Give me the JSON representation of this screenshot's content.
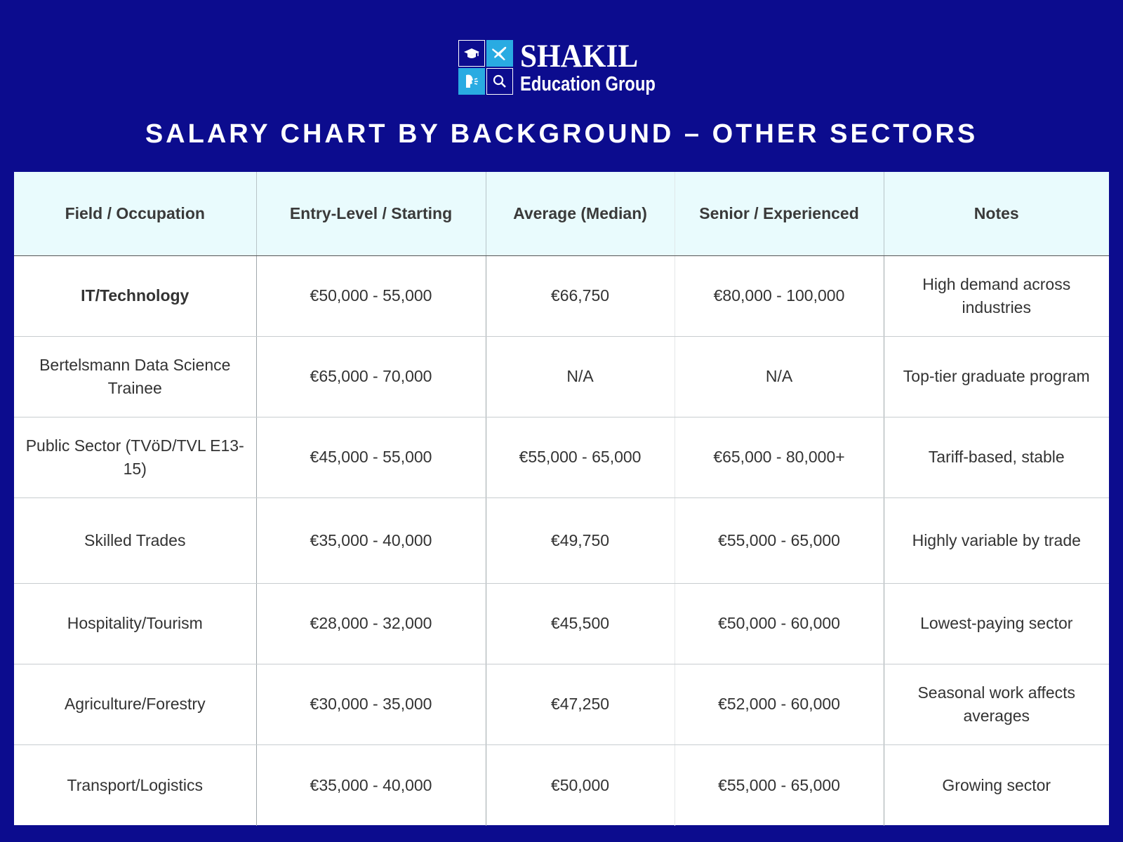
{
  "brand": {
    "name": "SHAKIL",
    "subtitle": "Education Group",
    "colors": {
      "background": "#0c0c8e",
      "accent": "#29abe2",
      "header_bg": "#e9fbfd"
    },
    "icons": [
      "graduation-cap-icon",
      "airplane-icon",
      "person-speaking-icon",
      "magnifier-icon"
    ]
  },
  "title": "SALARY CHART BY BACKGROUND – OTHER SECTORS",
  "table": {
    "headers": [
      "Field / Occupation",
      "Entry-Level / Starting",
      "Average (Median)",
      "Senior / Experienced",
      "Notes"
    ],
    "rows": [
      [
        "IT/Technology",
        "€50,000 - 55,000",
        "€66,750",
        "€80,000 - 100,000",
        "High demand across industries"
      ],
      [
        "Bertelsmann Data Science Trainee",
        "€65,000 - 70,000",
        "N/A",
        "N/A",
        "Top-tier graduate program"
      ],
      [
        "Public Sector (TVöD/TVL E13-15)",
        "€45,000 - 55,000",
        "€55,000 - 65,000",
        "€65,000 - 80,000+",
        "Tariff-based, stable"
      ],
      [
        "Skilled Trades",
        "€35,000 - 40,000",
        "€49,750",
        "€55,000 - 65,000",
        "Highly variable by trade"
      ],
      [
        "Hospitality/Tourism",
        "€28,000 - 32,000",
        "€45,500",
        "€50,000 - 60,000",
        "Lowest-paying sector"
      ],
      [
        "Agriculture/Forestry",
        "€30,000 - 35,000",
        "€47,250",
        "€52,000 - 60,000",
        "Seasonal work affects averages"
      ],
      [
        "Transport/Logistics",
        "€35,000 - 40,000",
        "€50,000",
        "€55,000 - 65,000",
        "Growing sector"
      ]
    ]
  }
}
